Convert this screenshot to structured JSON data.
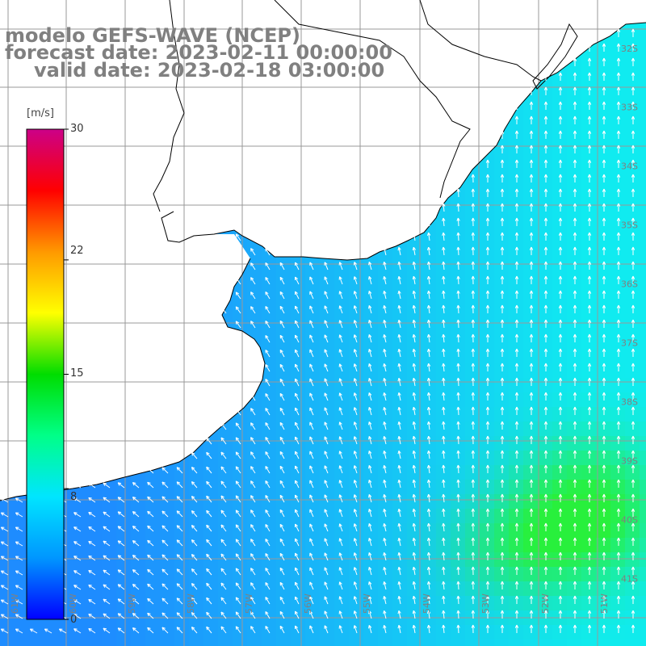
{
  "title": {
    "line1": "modelo GEFS-WAVE (NCEP)",
    "line2": "forecast date: 2023-02-11 00:00:00",
    "line3": "valid date: 2023-02-18 03:00:00"
  },
  "colorbar": {
    "unit": "[m/s]",
    "min": 0,
    "max": 30,
    "ticks": [
      "30",
      "22",
      "15",
      "8",
      "0"
    ],
    "tick_values": [
      30,
      22,
      15,
      8,
      0
    ],
    "colors": [
      "#0000ff",
      "#0096ff",
      "#00e5ff",
      "#00ff88",
      "#00dd00",
      "#ffff00",
      "#ff9900",
      "#ff0000",
      "#cc0088"
    ]
  },
  "map": {
    "lat_labels": [
      "32S",
      "33S",
      "34S",
      "35S",
      "36S",
      "37S",
      "38S",
      "39S",
      "40S",
      "41S"
    ],
    "lon_labels": [
      "61W",
      "60W",
      "59W",
      "58W",
      "57W",
      "56W",
      "55W",
      "54W",
      "53W",
      "52W",
      "51W"
    ],
    "land_color": "#ffffff",
    "grid_color": "#999999",
    "coast_color": "#000000",
    "arrow_color": "#ffffff"
  }
}
